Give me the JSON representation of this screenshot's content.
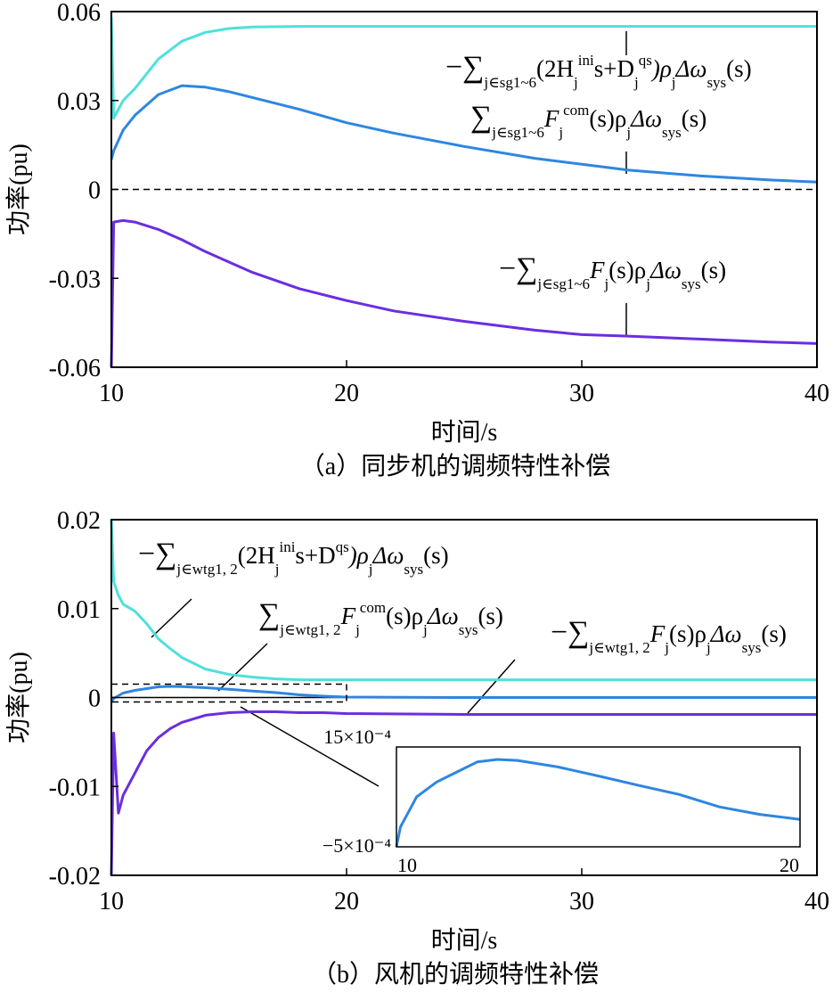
{
  "chart_data": [
    {
      "type": "line",
      "xlabel": "时间/s",
      "ylabel": "功率(pu)",
      "caption": "（a）同步机的调频特性补偿",
      "xlim": [
        10,
        40
      ],
      "ylim": [
        -0.06,
        0.06
      ],
      "xticks": [
        10,
        20,
        30,
        40
      ],
      "yticks": [
        0.06,
        0.03,
        0,
        -0.03,
        -0.06
      ],
      "x": [
        10,
        10.1,
        10.5,
        11,
        12,
        13,
        14,
        15,
        16,
        18,
        20,
        22,
        25,
        28,
        30,
        32,
        35,
        38,
        40
      ],
      "series": [
        {
          "color": "#4fe0dc",
          "values": [
            0.058,
            0.024,
            0.03,
            0.034,
            0.044,
            0.05,
            0.053,
            0.0543,
            0.0548,
            0.055,
            0.055,
            0.055,
            0.055,
            0.055,
            0.055,
            0.055,
            0.055,
            0.055,
            0.055
          ],
          "label": [
            {
              "t": "−∑",
              "pos": "base"
            },
            {
              "t": "j∈sg1~6",
              "pos": "sub"
            },
            {
              "t": "(2H",
              "pos": "base"
            },
            {
              "t": "j",
              "pos": "sub"
            },
            {
              "t": "ini",
              "pos": "sup"
            },
            {
              "t": "s+D",
              "pos": "base"
            },
            {
              "t": "j",
              "pos": "sub"
            },
            {
              "t": "qs",
              "pos": "sup"
            },
            {
              "t": ")ρ",
              "pos": "base"
            },
            {
              "t": "j",
              "pos": "sub"
            },
            {
              "t": "Δω",
              "pos": "base"
            },
            {
              "t": "sys",
              "pos": "sub"
            },
            {
              "t": "(s)",
              "pos": "base"
            }
          ]
        },
        {
          "color": "#2f86e0",
          "values": [
            0.01,
            0.013,
            0.02,
            0.025,
            0.032,
            0.035,
            0.0345,
            0.033,
            0.031,
            0.027,
            0.0225,
            0.019,
            0.0145,
            0.0105,
            0.0085,
            0.0065,
            0.0046,
            0.0032,
            0.0025
          ],
          "label": [
            {
              "t": "∑",
              "pos": "base"
            },
            {
              "t": "j∈sg1~6",
              "pos": "sub"
            },
            {
              "t": "F",
              "pos": "base"
            },
            {
              "t": "j",
              "pos": "sub"
            },
            {
              "t": "com",
              "pos": "sup"
            },
            {
              "t": "(s)ρ",
              "pos": "base"
            },
            {
              "t": "j",
              "pos": "sub"
            },
            {
              "t": "Δω",
              "pos": "base"
            },
            {
              "t": "sys",
              "pos": "sub"
            },
            {
              "t": "(s)",
              "pos": "base"
            }
          ]
        },
        {
          "color": "#6a2ee0",
          "values": [
            -0.06,
            -0.011,
            -0.0105,
            -0.011,
            -0.0135,
            -0.017,
            -0.021,
            -0.0245,
            -0.028,
            -0.0335,
            -0.0375,
            -0.041,
            -0.0445,
            -0.0475,
            -0.049,
            -0.0495,
            -0.0505,
            -0.0515,
            -0.052
          ],
          "label": [
            {
              "t": "−∑",
              "pos": "base"
            },
            {
              "t": "j∈sg1~6",
              "pos": "sub"
            },
            {
              "t": "F",
              "pos": "base"
            },
            {
              "t": "j",
              "pos": "sub"
            },
            {
              "t": "(s)ρ",
              "pos": "base"
            },
            {
              "t": "j",
              "pos": "sub"
            },
            {
              "t": "Δω",
              "pos": "base"
            },
            {
              "t": "sys",
              "pos": "sub"
            },
            {
              "t": "(s)",
              "pos": "base"
            }
          ]
        }
      ]
    },
    {
      "type": "line",
      "xlabel": "时间/s",
      "ylabel": "功率(pu)",
      "caption": "（b）风机的调频特性补偿",
      "xlim": [
        10,
        40
      ],
      "ylim": [
        -0.02,
        0.02
      ],
      "xticks": [
        10,
        20,
        30,
        40
      ],
      "yticks": [
        0.02,
        0.01,
        0,
        -0.01,
        -0.02
      ],
      "x": [
        10,
        10.1,
        10.3,
        10.5,
        11,
        11.5,
        12,
        12.5,
        13,
        14,
        15,
        16,
        17,
        18,
        19,
        20,
        25,
        30,
        40
      ],
      "series": [
        {
          "color": "#4fe0dc",
          "values": [
            0.02,
            0.013,
            0.0115,
            0.0105,
            0.0097,
            0.0083,
            0.0066,
            0.0055,
            0.0045,
            0.0032,
            0.0026,
            0.0023,
            0.0021,
            0.002,
            0.002,
            0.002,
            0.002,
            0.002,
            0.002
          ],
          "label": [
            {
              "t": "−∑",
              "pos": "base"
            },
            {
              "t": "j∈wtg1, 2",
              "pos": "sub"
            },
            {
              "t": "(2H",
              "pos": "base"
            },
            {
              "t": "j",
              "pos": "sub"
            },
            {
              "t": "ini",
              "pos": "sup"
            },
            {
              "t": "s+D",
              "pos": "base"
            },
            {
              "t": "qs",
              "pos": "sup"
            },
            {
              "t": ")ρ",
              "pos": "base"
            },
            {
              "t": "j",
              "pos": "sub"
            },
            {
              "t": "Δω",
              "pos": "base"
            },
            {
              "t": "sys",
              "pos": "sub"
            },
            {
              "t": "(s)",
              "pos": "base"
            }
          ]
        },
        {
          "color": "#2f86e0",
          "values": [
            -0.0005,
            -0.0001,
            0.0002,
            0.0005,
            0.0008,
            0.001,
            0.0012,
            0.00125,
            0.00123,
            0.0011,
            0.00092,
            0.00073,
            0.00055,
            0.0003,
            0.00015,
            5e-05,
            0,
            0,
            0
          ],
          "label": [
            {
              "t": "∑",
              "pos": "base"
            },
            {
              "t": "j∈wtg1, 2",
              "pos": "sub"
            },
            {
              "t": "F",
              "pos": "base"
            },
            {
              "t": "j",
              "pos": "sub"
            },
            {
              "t": "com",
              "pos": "sup"
            },
            {
              "t": "(s)ρ",
              "pos": "base"
            },
            {
              "t": "j",
              "pos": "sub"
            },
            {
              "t": "Δω",
              "pos": "base"
            },
            {
              "t": "sys",
              "pos": "sub"
            },
            {
              "t": "(s)",
              "pos": "base"
            }
          ]
        },
        {
          "color": "#6a2ee0",
          "values": [
            -0.02,
            -0.004,
            -0.013,
            -0.011,
            -0.0085,
            -0.006,
            -0.0045,
            -0.0035,
            -0.0028,
            -0.002,
            -0.0017,
            -0.0016,
            -0.0016,
            -0.0017,
            -0.0017,
            -0.0018,
            -0.0019,
            -0.0019,
            -0.0019
          ],
          "label": [
            {
              "t": "−∑",
              "pos": "base"
            },
            {
              "t": "j∈wtg1, 2",
              "pos": "sub"
            },
            {
              "t": "F",
              "pos": "base"
            },
            {
              "t": "j",
              "pos": "sub"
            },
            {
              "t": "(s)ρ",
              "pos": "base"
            },
            {
              "t": "j",
              "pos": "sub"
            },
            {
              "t": "Δω",
              "pos": "base"
            },
            {
              "t": "sys",
              "pos": "sub"
            },
            {
              "t": "(s)",
              "pos": "base"
            }
          ]
        }
      ],
      "inset": {
        "xlim": [
          10,
          20
        ],
        "ylim": [
          -0.0005,
          0.0015
        ],
        "xticks": [
          10,
          20
        ],
        "yticks": [
          {
            "value": 0.0015,
            "label": "15×10⁻⁴"
          },
          {
            "value": -0.0005,
            "label": "−5×10⁻⁴"
          }
        ]
      }
    }
  ]
}
